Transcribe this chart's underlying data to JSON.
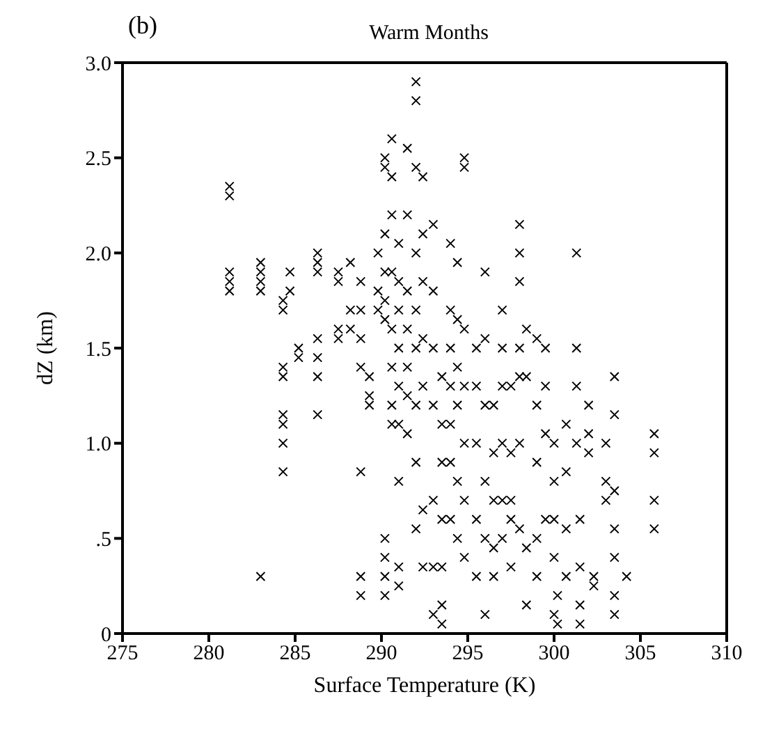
{
  "chart_data": {
    "type": "scatter",
    "title": "Warm Months",
    "xlabel": "Surface Temperature (K)",
    "ylabel": "dZ (km)",
    "annotations": [
      "(b)"
    ],
    "xlim": [
      275,
      310
    ],
    "xticks": [
      275,
      280,
      285,
      290,
      295,
      300,
      305,
      310
    ],
    "ylim": [
      0,
      3
    ],
    "yticks": [
      0,
      {
        "value": 0.5,
        "label": ".5"
      },
      {
        "value": 1,
        "label": "1.0"
      },
      {
        "value": 1.5,
        "label": "1.5"
      },
      {
        "value": 2,
        "label": "2.0"
      },
      {
        "value": 2.5,
        "label": "2.5"
      },
      {
        "value": 3,
        "label": "3.0"
      }
    ],
    "marker": "cross",
    "series": [
      {
        "color": "#000000",
        "x": [
          281.2,
          281.2,
          281.2,
          281.2,
          281.2,
          283,
          283,
          283,
          283,
          283,
          284.3,
          284.3,
          284.3,
          284.3,
          284.3,
          284.3,
          284.3,
          284.3,
          284.7,
          284.7,
          285.2,
          285.2,
          286.3,
          286.3,
          286.3,
          286.3,
          286.3,
          286.3,
          286.3,
          287.5,
          287.5,
          287.5,
          287.5,
          288.2,
          288.2,
          288.2,
          288.8,
          288.8,
          288.8,
          288.8,
          288.8,
          288.8,
          288.8,
          289.3,
          289.3,
          289.3,
          289.8,
          289.8,
          289.8,
          290.2,
          290.2,
          290.2,
          290.2,
          290.2,
          290.2,
          290.2,
          290.2,
          290.2,
          290.2,
          290.6,
          290.6,
          290.6,
          290.6,
          290.6,
          290.6,
          290.6,
          290.6,
          291,
          291,
          291,
          291,
          291,
          291,
          291,
          291,
          291,
          291.5,
          291.5,
          291.5,
          291.5,
          291.5,
          291.5,
          291.5,
          292,
          292,
          292,
          292,
          292,
          292,
          292,
          292,
          292,
          292.4,
          292.4,
          292.4,
          292.4,
          292.4,
          292.4,
          292.4,
          293,
          293,
          293,
          293,
          293,
          293,
          293,
          293.5,
          293.5,
          293.5,
          293.5,
          293.5,
          293.5,
          293.5,
          294,
          294,
          294,
          294,
          294,
          294,
          294,
          294.4,
          294.4,
          294.4,
          294.4,
          294.4,
          294.4,
          294.8,
          294.8,
          294.8,
          294.8,
          294.8,
          294.8,
          294.8,
          295.5,
          295.5,
          295.5,
          295.5,
          295.5,
          296,
          296,
          296,
          296,
          296,
          296,
          296.5,
          296.5,
          296.5,
          296.5,
          296.5,
          297,
          297,
          297,
          297,
          297,
          297,
          297.5,
          297.5,
          297.5,
          297.5,
          297.5,
          298,
          298,
          298,
          298,
          298,
          298,
          298,
          298.4,
          298.4,
          298.4,
          298.4,
          299,
          299,
          299,
          299,
          299,
          299.5,
          299.5,
          299.5,
          299.5,
          300,
          300,
          300,
          300,
          300,
          300.2,
          300.2,
          300.7,
          300.7,
          300.7,
          300.7,
          301.3,
          301.3,
          301.3,
          301.3,
          301.5,
          301.5,
          301.5,
          301.5,
          302,
          302,
          302,
          302.3,
          302.3,
          303,
          303,
          303,
          303.5,
          303.5,
          303.5,
          303.5,
          303.5,
          303.5,
          303.5,
          304.2,
          305.8,
          305.8,
          305.8,
          305.8
        ],
        "values": [
          2.35,
          2.3,
          1.9,
          1.85,
          1.8,
          1.95,
          1.9,
          1.85,
          1.8,
          0.3,
          1.75,
          1.7,
          1.4,
          1.35,
          1.15,
          1.1,
          1.0,
          0.85,
          1.9,
          1.8,
          1.5,
          1.45,
          2.0,
          1.95,
          1.9,
          1.55,
          1.45,
          1.35,
          1.15,
          1.9,
          1.85,
          1.6,
          1.55,
          1.95,
          1.7,
          1.6,
          1.85,
          1.7,
          1.55,
          1.4,
          0.85,
          0.3,
          0.2,
          1.35,
          1.25,
          1.2,
          2.0,
          1.8,
          1.7,
          2.5,
          2.45,
          2.1,
          1.9,
          1.75,
          1.65,
          0.5,
          0.4,
          0.3,
          0.2,
          2.6,
          2.4,
          2.2,
          1.9,
          1.6,
          1.4,
          1.2,
          1.1,
          2.05,
          1.85,
          1.7,
          1.5,
          1.3,
          1.1,
          0.8,
          0.35,
          0.25,
          2.55,
          2.2,
          1.8,
          1.6,
          1.4,
          1.25,
          1.05,
          2.9,
          2.8,
          2.45,
          2.0,
          1.7,
          1.5,
          1.2,
          0.9,
          0.55,
          2.4,
          2.1,
          1.85,
          1.55,
          1.3,
          0.65,
          0.35,
          2.15,
          1.8,
          1.5,
          1.2,
          0.7,
          0.35,
          0.1,
          1.35,
          1.1,
          0.9,
          0.6,
          0.35,
          0.15,
          0.05,
          2.05,
          1.7,
          1.5,
          1.3,
          1.1,
          0.9,
          0.6,
          1.95,
          1.65,
          1.4,
          1.2,
          0.8,
          0.5,
          2.5,
          2.45,
          1.6,
          1.3,
          1.0,
          0.7,
          0.4,
          1.5,
          1.3,
          1.0,
          0.6,
          0.3,
          1.9,
          1.55,
          1.2,
          0.8,
          0.5,
          0.1,
          1.2,
          0.95,
          0.7,
          0.45,
          0.3,
          1.7,
          1.5,
          1.3,
          1.0,
          0.7,
          0.5,
          1.3,
          0.95,
          0.7,
          0.6,
          0.35,
          2.15,
          2.0,
          1.85,
          1.5,
          1.35,
          1.0,
          0.55,
          1.6,
          1.35,
          0.45,
          0.15,
          1.55,
          1.2,
          0.9,
          0.5,
          0.3,
          1.5,
          1.3,
          1.05,
          0.6,
          1.0,
          0.8,
          0.6,
          0.4,
          0.1,
          0.2,
          0.05,
          1.1,
          0.85,
          0.55,
          0.3,
          2.0,
          1.5,
          1.3,
          1.0,
          0.6,
          0.35,
          0.15,
          0.05,
          1.2,
          1.05,
          0.95,
          0.3,
          0.25,
          1.0,
          0.8,
          0.7,
          1.35,
          1.15,
          0.75,
          0.55,
          0.4,
          0.2,
          0.1,
          0.3,
          1.05,
          0.95,
          0.7,
          0.55
        ]
      }
    ]
  }
}
